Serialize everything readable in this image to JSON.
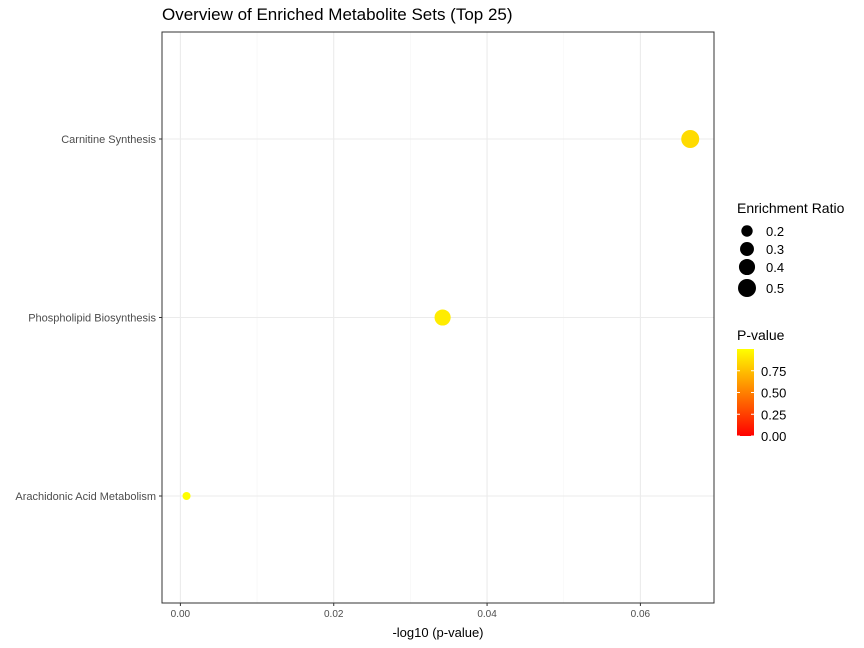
{
  "chart_data": {
    "type": "scatter",
    "title": "Overview of Enriched Metabolite Sets (Top 25)",
    "xlabel": "-log10 (p-value)",
    "ylabel": "",
    "xlim": [
      -0.0024,
      0.0696
    ],
    "x_ticks": [
      0.0,
      0.02,
      0.04,
      0.06
    ],
    "x_tick_labels": [
      "0.00",
      "0.02",
      "0.04",
      "0.06"
    ],
    "categories": [
      "Carnitine Synthesis",
      "Phospholipid Biosynthesis",
      "Arachidonic Acid Metabolism"
    ],
    "points": [
      {
        "category": "Carnitine Synthesis",
        "x": 0.0665,
        "enrichment_ratio": 0.5,
        "p_value": 0.858
      },
      {
        "category": "Phospholipid Biosynthesis",
        "x": 0.0342,
        "enrichment_ratio": 0.4,
        "p_value": 0.924
      },
      {
        "category": "Arachidonic Acid Metabolism",
        "x": 0.0008,
        "enrichment_ratio": 0.1,
        "p_value": 0.998
      }
    ],
    "grid": true,
    "legend_placement": "right",
    "size_legend": {
      "title": "Enrichment Ratio",
      "values": [
        0.2,
        0.3,
        0.4,
        0.5
      ],
      "labels": [
        "0.2",
        "0.3",
        "0.4",
        "0.5"
      ]
    },
    "color_legend": {
      "title": "P-value",
      "range": [
        0.0,
        1.0
      ],
      "ticks": [
        0.0,
        0.25,
        0.5,
        0.75
      ],
      "labels": [
        "0.00",
        "0.25",
        "0.50",
        "0.75"
      ],
      "low_color": "#ff0000",
      "high_color": "#ffff00"
    }
  }
}
